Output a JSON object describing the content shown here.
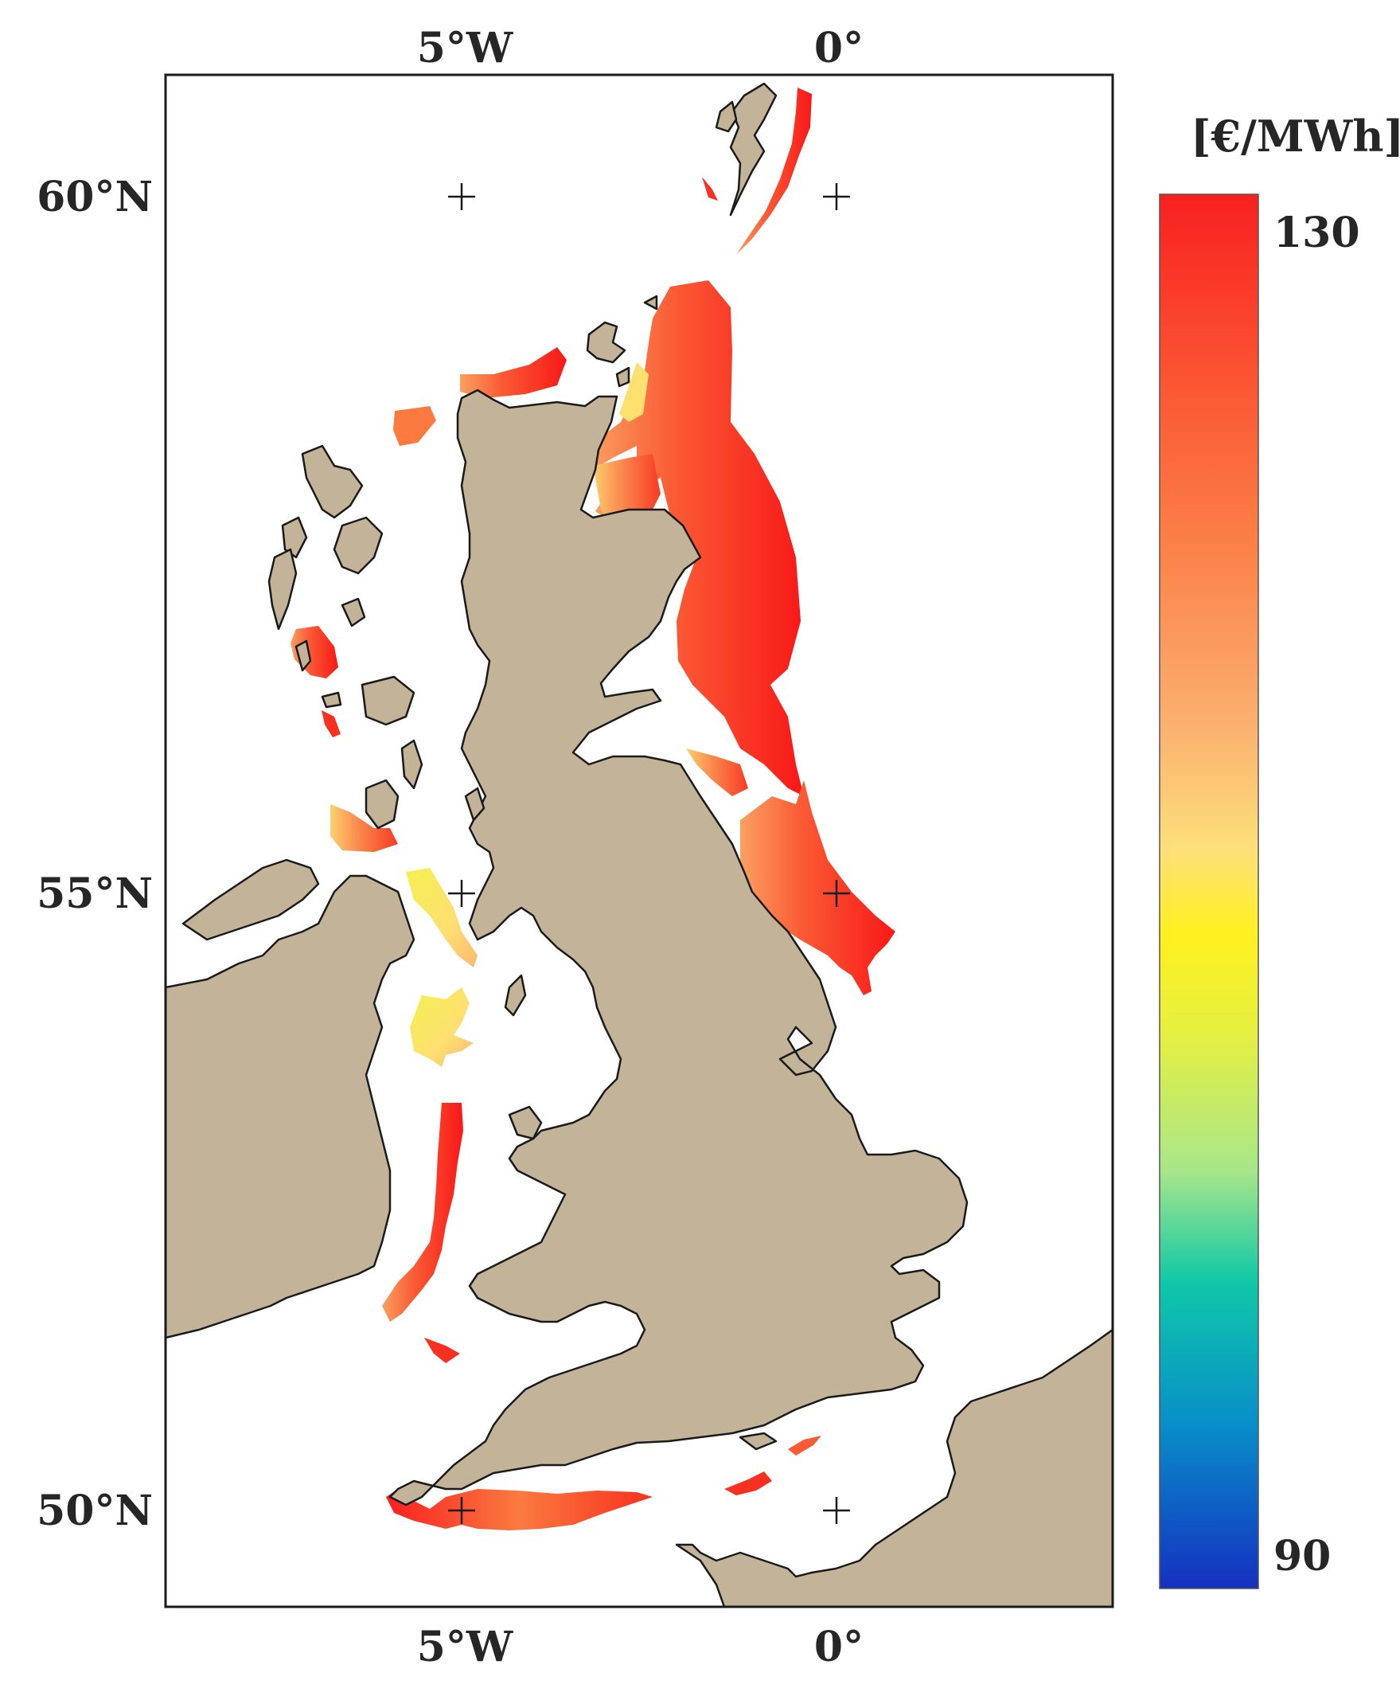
{
  "map": {
    "lon_labels_top": [
      "5°W",
      "0°"
    ],
    "lon_labels_bottom": [
      "5°W",
      "0°"
    ],
    "lat_labels": [
      "60°N",
      "55°N",
      "50°N"
    ],
    "gridline_markers": "+",
    "land_color": "#c2b399",
    "coastline_color": "#1a1a1a",
    "sea_color": "#ffffff"
  },
  "colorbar": {
    "unit": "[€/MWh]",
    "max_label": "130",
    "min_label": "90",
    "range": [
      90,
      130
    ],
    "colormap": [
      "#1530c0",
      "#0890c8",
      "#10c8a8",
      "#a8e68a",
      "#e6f040",
      "#fff020",
      "#fde07a",
      "#fbb070",
      "#fb8048",
      "#fb5030",
      "#f82020"
    ]
  },
  "offshore_regions": [
    {
      "name": "Shetland east",
      "level": "orange-red"
    },
    {
      "name": "Orkney / Moray Firth",
      "level": "orange-yellow"
    },
    {
      "name": "North Sea east coast of Scotland",
      "level": "red"
    },
    {
      "name": "North Sea off NE England",
      "level": "red"
    },
    {
      "name": "Outer Hebrides",
      "level": "red"
    },
    {
      "name": "North Channel / Irish Sea",
      "level": "yellow"
    },
    {
      "name": "St George's Channel",
      "level": "orange-red"
    },
    {
      "name": "English Channel west",
      "level": "red"
    },
    {
      "name": "English Channel east",
      "level": "red"
    }
  ]
}
